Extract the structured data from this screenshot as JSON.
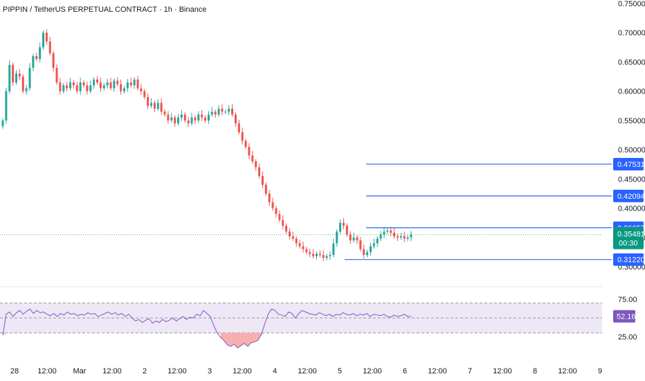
{
  "header": {
    "title": "PIPPIN / TetherUS PERPETUAL CONTRACT · 1h · Binance"
  },
  "colors": {
    "up": "#26a69a",
    "down": "#ef5350",
    "level": "#2962ff",
    "rsi_line": "#7e57c2",
    "rsi_band": "#ede7f6",
    "rsi_oversold_fill": "#f7a1a1",
    "price_tag": "#089981"
  },
  "chart_data": [
    {
      "type": "candlestick",
      "symbol": "PIPPIN / TetherUS PERPETUAL CONTRACT",
      "interval": "1h",
      "exchange": "Binance",
      "ylim": [
        0.3,
        0.75
      ],
      "y_ticks": [
        "0.75000",
        "0.70000",
        "0.65000",
        "0.60000",
        "0.55000",
        "0.50000",
        "0.45000",
        "0.40000",
        "0.35000",
        "0.30000"
      ],
      "x_ticks": [
        "28",
        "12:00",
        "Mar",
        "12:00",
        "2",
        "12:00",
        "3",
        "12:00",
        "4",
        "12:00",
        "5",
        "12:00",
        "6",
        "12:00",
        "7",
        "12:00",
        "8",
        "12:00",
        "9"
      ],
      "close_series": [
        0.55,
        0.6,
        0.645,
        0.615,
        0.63,
        0.625,
        0.6,
        0.605,
        0.64,
        0.66,
        0.655,
        0.675,
        0.7,
        0.685,
        0.665,
        0.64,
        0.615,
        0.6,
        0.61,
        0.605,
        0.615,
        0.61,
        0.6,
        0.615,
        0.61,
        0.6,
        0.61,
        0.62,
        0.615,
        0.605,
        0.61,
        0.615,
        0.605,
        0.618,
        0.612,
        0.6,
        0.605,
        0.615,
        0.61,
        0.62,
        0.605,
        0.6,
        0.59,
        0.575,
        0.58,
        0.57,
        0.58,
        0.565,
        0.56,
        0.55,
        0.555,
        0.545,
        0.555,
        0.56,
        0.55,
        0.545,
        0.555,
        0.55,
        0.56,
        0.555,
        0.55,
        0.56,
        0.565,
        0.56,
        0.57,
        0.565,
        0.565,
        0.57,
        0.56,
        0.545,
        0.53,
        0.515,
        0.505,
        0.49,
        0.48,
        0.47,
        0.455,
        0.44,
        0.425,
        0.41,
        0.4,
        0.39,
        0.38,
        0.37,
        0.36,
        0.352,
        0.348,
        0.34,
        0.335,
        0.33,
        0.325,
        0.322,
        0.318,
        0.322,
        0.32,
        0.315,
        0.318,
        0.32,
        0.34,
        0.36,
        0.375,
        0.37,
        0.355,
        0.345,
        0.35,
        0.345,
        0.33,
        0.32,
        0.325,
        0.335,
        0.34,
        0.348,
        0.355,
        0.36,
        0.362,
        0.358,
        0.352,
        0.35,
        0.352,
        0.348,
        0.35,
        0.355
      ],
      "price_levels": [
        0.47531,
        0.42094,
        0.36657,
        0.3122
      ],
      "last_price": "0.35481",
      "countdown": "00:30"
    },
    {
      "type": "line",
      "indicator": "RSI",
      "ylim": [
        0,
        100
      ],
      "y_ticks": [
        "75.00",
        "25.00"
      ],
      "upper_band": 70,
      "lower_band": 30,
      "last_value": "52.16",
      "values": [
        27,
        55,
        58,
        52,
        57,
        60,
        55,
        59,
        62,
        56,
        60,
        57,
        58,
        55,
        53,
        56,
        52,
        56,
        54,
        58,
        55,
        56,
        53,
        55,
        54,
        57,
        55,
        56,
        52,
        54,
        56,
        58,
        55,
        57,
        54,
        56,
        52,
        55,
        50,
        46,
        48,
        44,
        47,
        49,
        43,
        46,
        44,
        48,
        45,
        47,
        50,
        46,
        49,
        52,
        48,
        51,
        50,
        55,
        53,
        60,
        56,
        52,
        40,
        30,
        24,
        20,
        14,
        12,
        15,
        10,
        13,
        16,
        12,
        17,
        18,
        20,
        28,
        42,
        55,
        62,
        60,
        55,
        54,
        52,
        58,
        56,
        50,
        56,
        60,
        58,
        56,
        55,
        54,
        57,
        55,
        53,
        55,
        52,
        55,
        54,
        57,
        55,
        54,
        56,
        53,
        55,
        54,
        56,
        52,
        55,
        54,
        53,
        55,
        52,
        51,
        54,
        52,
        53,
        55,
        52,
        52
      ]
    }
  ]
}
